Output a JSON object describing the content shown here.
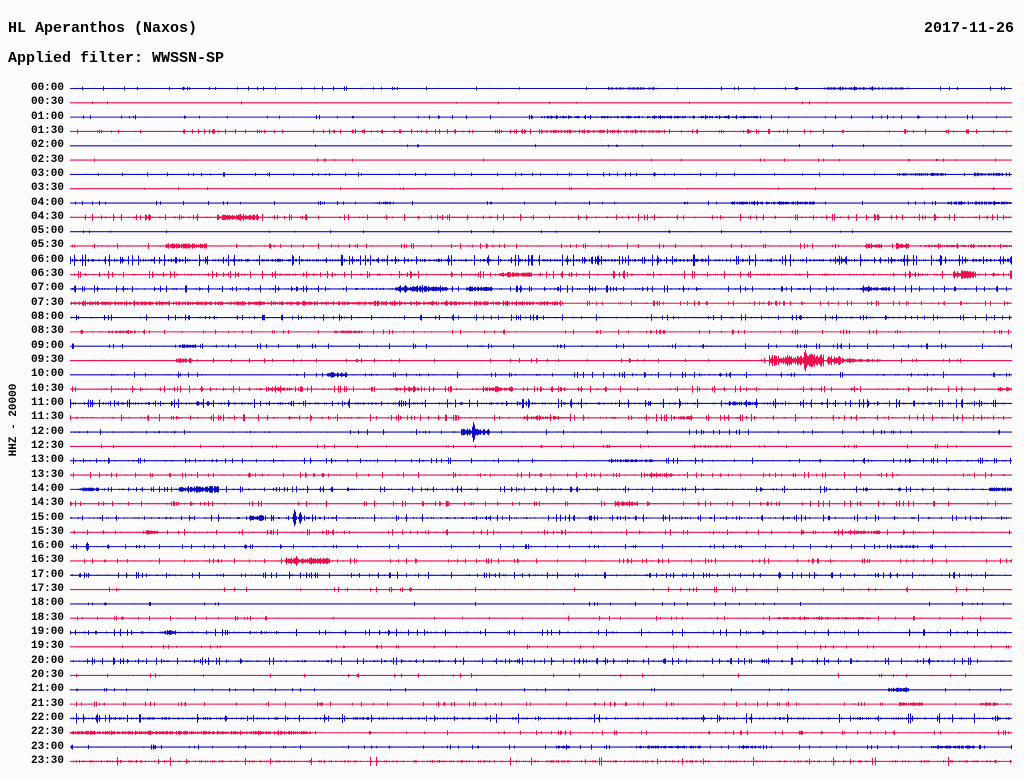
{
  "header": {
    "title": "HL Aperanthos (Naxos)",
    "date": "2017-11-26",
    "filter_label": "Applied filter: WWSSN-SP"
  },
  "y_axis_label": "HHZ - 20000",
  "colors": {
    "trace_blue": "#0d0dc6",
    "trace_red": "#ee0f4c",
    "text": "#000000",
    "background": "#fbfbfb"
  },
  "chart_data": {
    "type": "line",
    "subtype": "helicorder_day_plot",
    "station": "HL Aperanthos (Naxos)",
    "date": "2017-11-26",
    "filter": "WWSSN-SP",
    "channel": "HHZ",
    "scale": 20000,
    "minutes_per_row": 30,
    "row_count": 48,
    "legend": "none",
    "grid": false,
    "note": "48 alternating blue/red half-hour traces; noise = baseline amplitude px, bursts = [startFrac,endFrac,ampPx], spikes = [frac,ampPx]",
    "rows": [
      {
        "t": "00:00",
        "color": "blue",
        "noise": 0.7,
        "tick_density": 0.06,
        "bursts": [
          [
            0.57,
            0.62,
            1.2
          ],
          [
            0.8,
            0.89,
            1.4
          ]
        ],
        "spikes": [
          [
            0.12,
            1.8
          ],
          [
            0.77,
            1.4
          ]
        ]
      },
      {
        "t": "00:30",
        "color": "red",
        "noise": 0.55,
        "tick_density": 0.02,
        "bursts": [],
        "spikes": []
      },
      {
        "t": "01:00",
        "color": "blue",
        "noise": 0.7,
        "tick_density": 0.08,
        "bursts": [
          [
            0.5,
            0.73,
            1.3
          ]
        ],
        "spikes": [
          [
            0.9,
            1.6
          ],
          [
            0.3,
            1.3
          ]
        ]
      },
      {
        "t": "01:30",
        "color": "red",
        "noise": 0.8,
        "tick_density": 0.1,
        "bursts": [
          [
            0.5,
            0.63,
            1.4
          ]
        ],
        "spikes": [
          [
            0.53,
            2.0
          ],
          [
            0.72,
            1.8
          ],
          [
            0.82,
            1.6
          ],
          [
            0.93,
            1.5
          ]
        ]
      },
      {
        "t": "02:00",
        "color": "blue",
        "noise": 0.5,
        "tick_density": 0.015,
        "bursts": [],
        "spikes": [
          [
            0.58,
            1.2
          ]
        ]
      },
      {
        "t": "02:30",
        "color": "red",
        "noise": 0.55,
        "tick_density": 0.02,
        "bursts": [],
        "spikes": [
          [
            0.27,
            1.5
          ],
          [
            0.89,
            1.3
          ],
          [
            0.92,
            1.3
          ]
        ]
      },
      {
        "t": "03:00",
        "color": "blue",
        "noise": 0.7,
        "tick_density": 0.08,
        "bursts": [
          [
            0.88,
            0.93,
            1.5
          ],
          [
            0.96,
            0.99,
            1.5
          ]
        ],
        "spikes": [
          [
            0.62,
            1.8
          ]
        ]
      },
      {
        "t": "03:30",
        "color": "red",
        "noise": 0.5,
        "tick_density": 0.015,
        "bursts": [],
        "spikes": [
          [
            0.98,
            1.3
          ]
        ]
      },
      {
        "t": "04:00",
        "color": "blue",
        "noise": 0.7,
        "tick_density": 0.06,
        "bursts": [
          [
            0.32,
            0.34,
            1.5
          ],
          [
            0.7,
            0.79,
            1.5
          ],
          [
            0.93,
            1.0,
            1.6
          ]
        ],
        "spikes": []
      },
      {
        "t": "04:30",
        "color": "red",
        "noise": 1.1,
        "tick_density": 0.1,
        "bursts": [
          [
            0.155,
            0.2,
            2.8
          ]
        ],
        "spikes": [
          [
            0.25,
            2.0
          ]
        ]
      },
      {
        "t": "05:00",
        "color": "blue",
        "noise": 0.5,
        "tick_density": 0.02,
        "bursts": [],
        "spikes": []
      },
      {
        "t": "05:30",
        "color": "red",
        "noise": 0.9,
        "tick_density": 0.08,
        "bursts": [
          [
            0.1,
            0.145,
            2.6
          ],
          [
            0.843,
            0.861,
            2.8
          ],
          [
            0.876,
            0.89,
            3.0
          ],
          [
            0.9,
            1.0,
            1.3
          ]
        ],
        "spikes": []
      },
      {
        "t": "06:00",
        "color": "blue",
        "noise": 1.9,
        "tick_density": 0.12,
        "bursts": [],
        "spikes": [
          [
            0.823,
            3.0
          ]
        ]
      },
      {
        "t": "06:30",
        "color": "red",
        "noise": 1.3,
        "tick_density": 0.1,
        "bursts": [
          [
            0.455,
            0.49,
            2.6
          ],
          [
            0.937,
            0.961,
            4.2
          ]
        ],
        "spikes": [
          [
            0.98,
            2.0
          ]
        ]
      },
      {
        "t": "07:00",
        "color": "blue",
        "noise": 1.2,
        "tick_density": 0.1,
        "bursts": [
          [
            0.345,
            0.4,
            3.2
          ],
          [
            0.42,
            0.447,
            2.6
          ],
          [
            0.838,
            0.87,
            1.8
          ]
        ],
        "spikes": []
      },
      {
        "t": "07:30",
        "color": "red",
        "noise": 0.9,
        "tick_density": 0.12,
        "bursts": [
          [
            0.0,
            0.52,
            1.8
          ]
        ],
        "spikes": []
      },
      {
        "t": "08:00",
        "color": "blue",
        "noise": 1.0,
        "tick_density": 0.08,
        "bursts": [],
        "spikes": [
          [
            0.775,
            2.5
          ]
        ]
      },
      {
        "t": "08:30",
        "color": "red",
        "noise": 0.8,
        "tick_density": 0.08,
        "bursts": [
          [
            0.04,
            0.07,
            1.5
          ],
          [
            0.28,
            0.31,
            1.6
          ]
        ],
        "spikes": [
          [
            0.012,
            2.2
          ],
          [
            0.63,
            2.0
          ]
        ]
      },
      {
        "t": "09:00",
        "color": "blue",
        "noise": 0.9,
        "tick_density": 0.06,
        "bursts": [
          [
            0.115,
            0.133,
            2.2
          ]
        ],
        "spikes": []
      },
      {
        "t": "09:30",
        "color": "red",
        "noise": 0.8,
        "tick_density": 0.06,
        "bursts": [
          [
            0.112,
            0.13,
            2.6
          ],
          [
            0.741,
            0.78,
            5.5
          ],
          [
            0.78,
            0.8,
            8.0
          ],
          [
            0.803,
            0.818,
            5.0
          ],
          [
            0.818,
            0.84,
            2.6
          ],
          [
            0.84,
            0.86,
            1.5
          ]
        ],
        "spikes": [
          [
            0.78,
            11.0
          ]
        ]
      },
      {
        "t": "10:00",
        "color": "blue",
        "noise": 1.0,
        "tick_density": 0.08,
        "bursts": [
          [
            0.272,
            0.294,
            2.8
          ]
        ],
        "spikes": [
          [
            0.69,
            1.8
          ]
        ]
      },
      {
        "t": "10:30",
        "color": "red",
        "noise": 1.1,
        "tick_density": 0.1,
        "bursts": [
          [
            0.21,
            0.235,
            2.0
          ],
          [
            0.345,
            0.37,
            2.0
          ],
          [
            0.44,
            0.47,
            2.0
          ],
          [
            0.985,
            1.0,
            2.2
          ]
        ],
        "spikes": []
      },
      {
        "t": "11:00",
        "color": "blue",
        "noise": 1.5,
        "tick_density": 0.1,
        "bursts": [
          [
            0.7,
            0.73,
            2.0
          ]
        ],
        "spikes": [
          [
            0.135,
            2.5
          ],
          [
            0.146,
            2.5
          ]
        ]
      },
      {
        "t": "11:30",
        "color": "red",
        "noise": 1.2,
        "tick_density": 0.1,
        "bursts": [
          [
            0.48,
            0.52,
            1.8
          ],
          [
            0.64,
            0.66,
            1.8
          ]
        ],
        "spikes": []
      },
      {
        "t": "12:00",
        "color": "blue",
        "noise": 0.9,
        "tick_density": 0.06,
        "bursts": [
          [
            0.415,
            0.445,
            3.5
          ]
        ],
        "spikes": [
          [
            0.428,
            10.0
          ]
        ]
      },
      {
        "t": "12:30",
        "color": "red",
        "noise": 0.7,
        "tick_density": 0.04,
        "bursts": [
          [
            0.66,
            0.7,
            1.3
          ]
        ],
        "spikes": [
          [
            0.5,
            1.6
          ],
          [
            0.57,
            1.5
          ]
        ]
      },
      {
        "t": "13:00",
        "color": "blue",
        "noise": 1.0,
        "tick_density": 0.08,
        "bursts": [
          [
            0.57,
            0.62,
            1.5
          ]
        ],
        "spikes": []
      },
      {
        "t": "13:30",
        "color": "red",
        "noise": 1.0,
        "tick_density": 0.08,
        "bursts": [
          [
            0.61,
            0.64,
            1.8
          ]
        ],
        "spikes": [
          [
            0.19,
            2.6
          ],
          [
            0.268,
            2.2
          ]
        ]
      },
      {
        "t": "14:00",
        "color": "blue",
        "noise": 1.1,
        "tick_density": 0.08,
        "bursts": [
          [
            0.01,
            0.03,
            2.0
          ],
          [
            0.115,
            0.158,
            3.4
          ],
          [
            0.975,
            1.0,
            2.0
          ]
        ],
        "spikes": [
          [
            0.845,
            2.0
          ],
          [
            0.88,
            2.0
          ]
        ]
      },
      {
        "t": "14:30",
        "color": "red",
        "noise": 1.0,
        "tick_density": 0.1,
        "bursts": [
          [
            0.578,
            0.602,
            3.0
          ]
        ],
        "spikes": [
          [
            0.0,
            2.2
          ],
          [
            0.74,
            2.0
          ]
        ]
      },
      {
        "t": "15:00",
        "color": "blue",
        "noise": 1.2,
        "tick_density": 0.1,
        "bursts": [
          [
            0.19,
            0.205,
            3.2
          ]
        ],
        "spikes": [
          [
            0.238,
            8.5
          ],
          [
            0.244,
            6.0
          ]
        ]
      },
      {
        "t": "15:30",
        "color": "red",
        "noise": 1.0,
        "tick_density": 0.08,
        "bursts": [
          [
            0.077,
            0.093,
            2.2
          ],
          [
            0.81,
            0.86,
            1.8
          ]
        ],
        "spikes": []
      },
      {
        "t": "16:00",
        "color": "blue",
        "noise": 0.8,
        "tick_density": 0.06,
        "bursts": [
          [
            0.87,
            0.9,
            1.4
          ]
        ],
        "spikes": [
          [
            0.018,
            4.5
          ],
          [
            0.04,
            1.8
          ],
          [
            0.186,
            2.2
          ]
        ]
      },
      {
        "t": "16:30",
        "color": "red",
        "noise": 0.9,
        "tick_density": 0.08,
        "bursts": [
          [
            0.228,
            0.276,
            3.6
          ]
        ],
        "spikes": [
          [
            0.24,
            5.0
          ]
        ]
      },
      {
        "t": "17:00",
        "color": "blue",
        "noise": 1.1,
        "tick_density": 0.1,
        "bursts": [],
        "spikes": []
      },
      {
        "t": "17:30",
        "color": "red",
        "noise": 0.9,
        "tick_density": 0.04,
        "bursts": [],
        "spikes": [
          [
            0.361,
            2.2
          ]
        ]
      },
      {
        "t": "18:00",
        "color": "blue",
        "noise": 0.7,
        "tick_density": 0.05,
        "bursts": [],
        "spikes": [
          [
            0.037,
            1.6
          ]
        ]
      },
      {
        "t": "18:30",
        "color": "red",
        "noise": 0.8,
        "tick_density": 0.06,
        "bursts": [
          [
            0.75,
            0.85,
            1.2
          ]
        ],
        "spikes": [
          [
            0.055,
            1.8
          ]
        ]
      },
      {
        "t": "19:00",
        "color": "blue",
        "noise": 1.2,
        "tick_density": 0.08,
        "bursts": [
          [
            0.099,
            0.112,
            2.6
          ]
        ],
        "spikes": []
      },
      {
        "t": "19:30",
        "color": "red",
        "noise": 0.7,
        "tick_density": 0.05,
        "bursts": [],
        "spikes": []
      },
      {
        "t": "20:00",
        "color": "blue",
        "noise": 1.2,
        "tick_density": 0.1,
        "bursts": [],
        "spikes": []
      },
      {
        "t": "20:30",
        "color": "red",
        "noise": 0.8,
        "tick_density": 0.03,
        "bursts": [],
        "spikes": [
          [
            0.305,
            1.6
          ]
        ]
      },
      {
        "t": "21:00",
        "color": "blue",
        "noise": 0.6,
        "tick_density": 0.04,
        "bursts": [
          [
            0.868,
            0.89,
            2.4
          ]
        ],
        "spikes": []
      },
      {
        "t": "21:30",
        "color": "red",
        "noise": 0.8,
        "tick_density": 0.08,
        "bursts": [
          [
            0.88,
            0.905,
            1.8
          ],
          [
            0.965,
            0.985,
            1.8
          ]
        ],
        "spikes": []
      },
      {
        "t": "22:00",
        "color": "blue",
        "noise": 1.6,
        "tick_density": 0.06,
        "bursts": [],
        "spikes": [
          [
            0.165,
            2.6
          ]
        ]
      },
      {
        "t": "22:30",
        "color": "red",
        "noise": 0.8,
        "tick_density": 0.08,
        "bursts": [
          [
            0.0,
            0.255,
            1.8
          ]
        ],
        "spikes": [
          [
            0.318,
            1.8
          ]
        ]
      },
      {
        "t": "23:00",
        "color": "blue",
        "noise": 0.8,
        "tick_density": 0.08,
        "bursts": [
          [
            0.515,
            0.532,
            1.6
          ],
          [
            0.6,
            0.67,
            1.6
          ],
          [
            0.71,
            0.733,
            1.6
          ],
          [
            0.913,
            0.96,
            1.8
          ]
        ],
        "spikes": []
      },
      {
        "t": "23:30",
        "color": "red",
        "noise": 1.5,
        "tick_density": 0.03,
        "bursts": [],
        "spikes": [
          [
            0.982,
            1.6
          ]
        ]
      }
    ]
  }
}
